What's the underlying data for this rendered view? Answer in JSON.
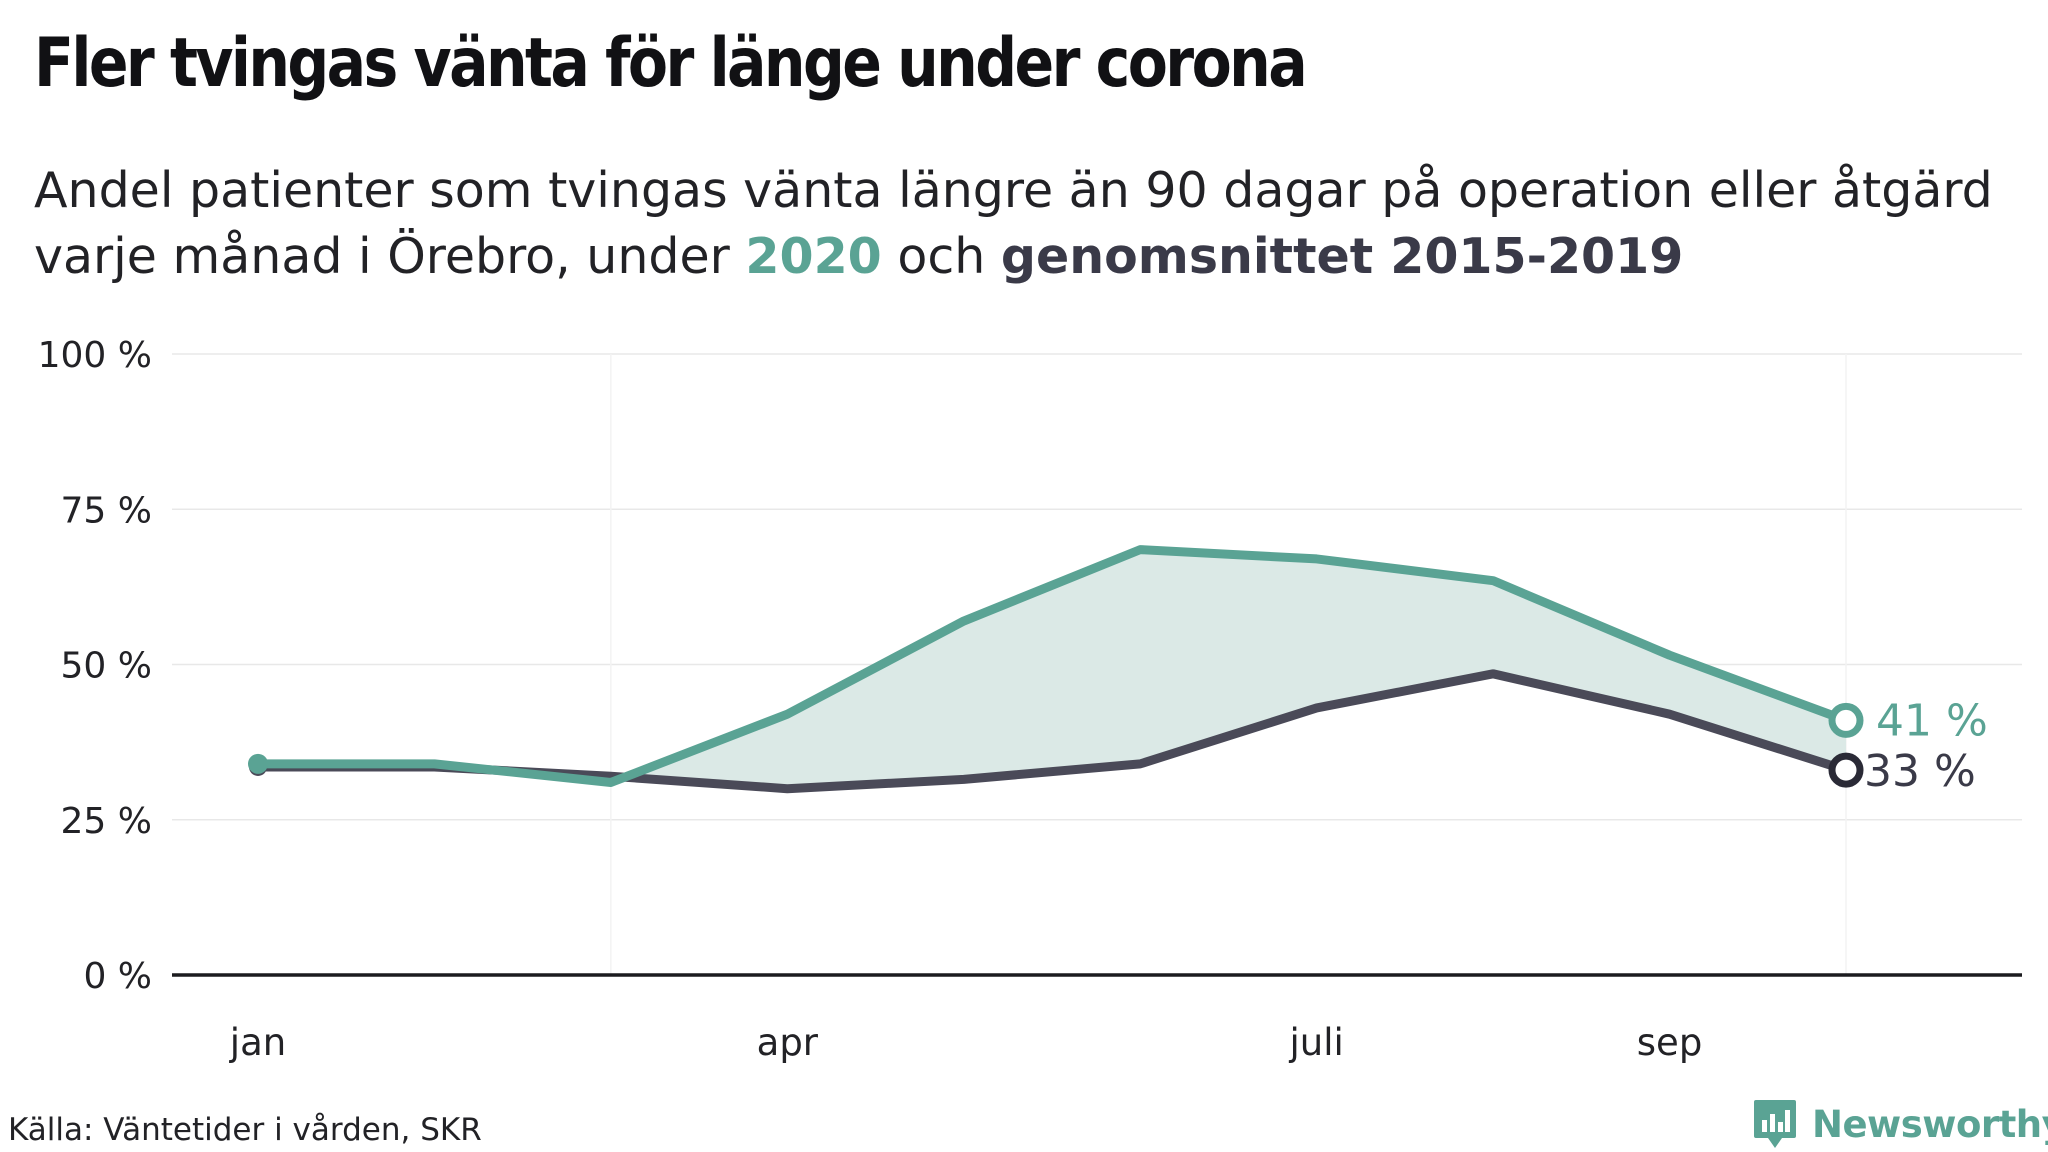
{
  "title": "Fler tvingas vänta för länge under corona",
  "subtitle": {
    "line1": "Andel patienter som tvingas vänta längre än 90 dagar på operation eller åtgärd",
    "line2_prefix": "varje månad i Örebro, under ",
    "line2_series1": "2020",
    "line2_middle": " och ",
    "line2_series2": "genomsnittet 2015-2019"
  },
  "source": "Källa: Väntetider i vården, SKR",
  "logo": {
    "text": "Newsworthy",
    "icon": "newsworthy-logo-icon"
  },
  "colors": {
    "series_2020": "#5aa394",
    "series_avg": "#4a4a58",
    "area_fill": "#dbe9e6",
    "grid": "#e8e8e8",
    "axis": "#1b1b1f",
    "end_label_avg": "#3a3a48"
  },
  "chart_data": {
    "type": "line",
    "x": [
      "jan",
      "feb",
      "mar",
      "apr",
      "maj",
      "jun",
      "juli",
      "aug",
      "sep",
      "okt"
    ],
    "x_tick_labels": [
      {
        "month": "jan",
        "label": "jan"
      },
      {
        "month": "apr",
        "label": "apr"
      },
      {
        "month": "juli",
        "label": "juli"
      },
      {
        "month": "sep",
        "label": "sep"
      }
    ],
    "y_ticks": [
      0,
      25,
      50,
      75,
      100
    ],
    "y_tick_labels": [
      "0 %",
      "25 %",
      "50 %",
      "75 %",
      "100 %"
    ],
    "ylim": [
      0,
      100
    ],
    "grid": true,
    "area_between_series": true,
    "series": [
      {
        "name": "2020",
        "values": [
          34,
          34,
          31,
          42,
          57,
          68.5,
          67,
          63.5,
          51.5,
          41
        ],
        "end_label": "41 %"
      },
      {
        "name": "genomsnittet 2015-2019",
        "values": [
          33.5,
          33.5,
          32,
          30,
          31.5,
          34,
          43,
          48.5,
          42,
          33
        ],
        "end_label": "33 %"
      }
    ]
  }
}
